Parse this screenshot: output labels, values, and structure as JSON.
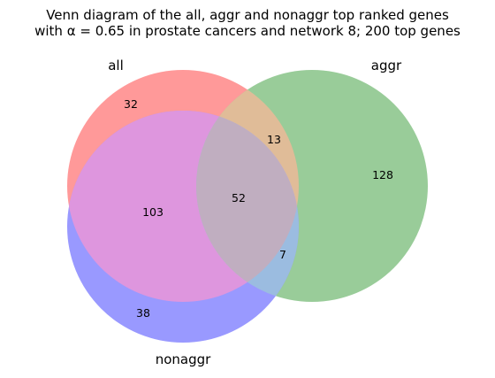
{
  "title_line1": "Venn diagram of the all, aggr and nonaggr top ranked genes",
  "title_line2": "with α = 0.65 in prostate cancers and network 8; 200 top genes",
  "sets": {
    "all": {
      "label": "all",
      "color": "#ff9999"
    },
    "aggr": {
      "label": "aggr",
      "color": "#99cc99"
    },
    "nonaggr": {
      "label": "nonaggr",
      "color": "#9999ff"
    }
  },
  "regions": {
    "all_only": "32",
    "aggr_only": "128",
    "nonaggr_only": "38",
    "all_aggr": "13",
    "all_nonaggr": "103",
    "aggr_nonaggr": "7",
    "all_aggr_nonaggr": "52"
  },
  "region_colors": {
    "all_aggr": "#e0bc98",
    "all_nonaggr": "#de96de",
    "aggr_nonaggr": "#9bbce0",
    "all_aggr_nonaggr": "#c0aec0"
  }
}
